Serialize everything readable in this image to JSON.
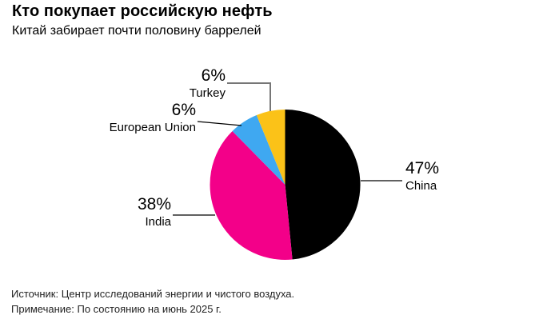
{
  "header": {
    "title": "Кто покупает российскую нефть",
    "subtitle": "Китай забирает почти половину баррелей"
  },
  "chart_data": {
    "type": "pie",
    "title": "Кто покупает российскую нефть",
    "subtitle": "Китай забирает почти половину баррелей",
    "unit": "% of barrels",
    "start_angle_deg": 0,
    "direction": "clockwise-from-top",
    "slices": [
      {
        "label": "China",
        "value": 47,
        "display": "47%",
        "color": "#000000"
      },
      {
        "label": "India",
        "value": 38,
        "display": "38%",
        "color": "#F30089"
      },
      {
        "label": "European Union",
        "value": 6,
        "display": "6%",
        "color": "#3FA8F1"
      },
      {
        "label": "Turkey",
        "value": 6,
        "display": "6%",
        "color": "#FBC218"
      }
    ],
    "callout_line_color": "#000000",
    "turkey_callout_line_color": "#767676"
  },
  "footer": {
    "source": "Источник: Центр исследований энергии и чистого воздуха.",
    "note": "Примечание: По состоянию на июнь 2025 г."
  }
}
